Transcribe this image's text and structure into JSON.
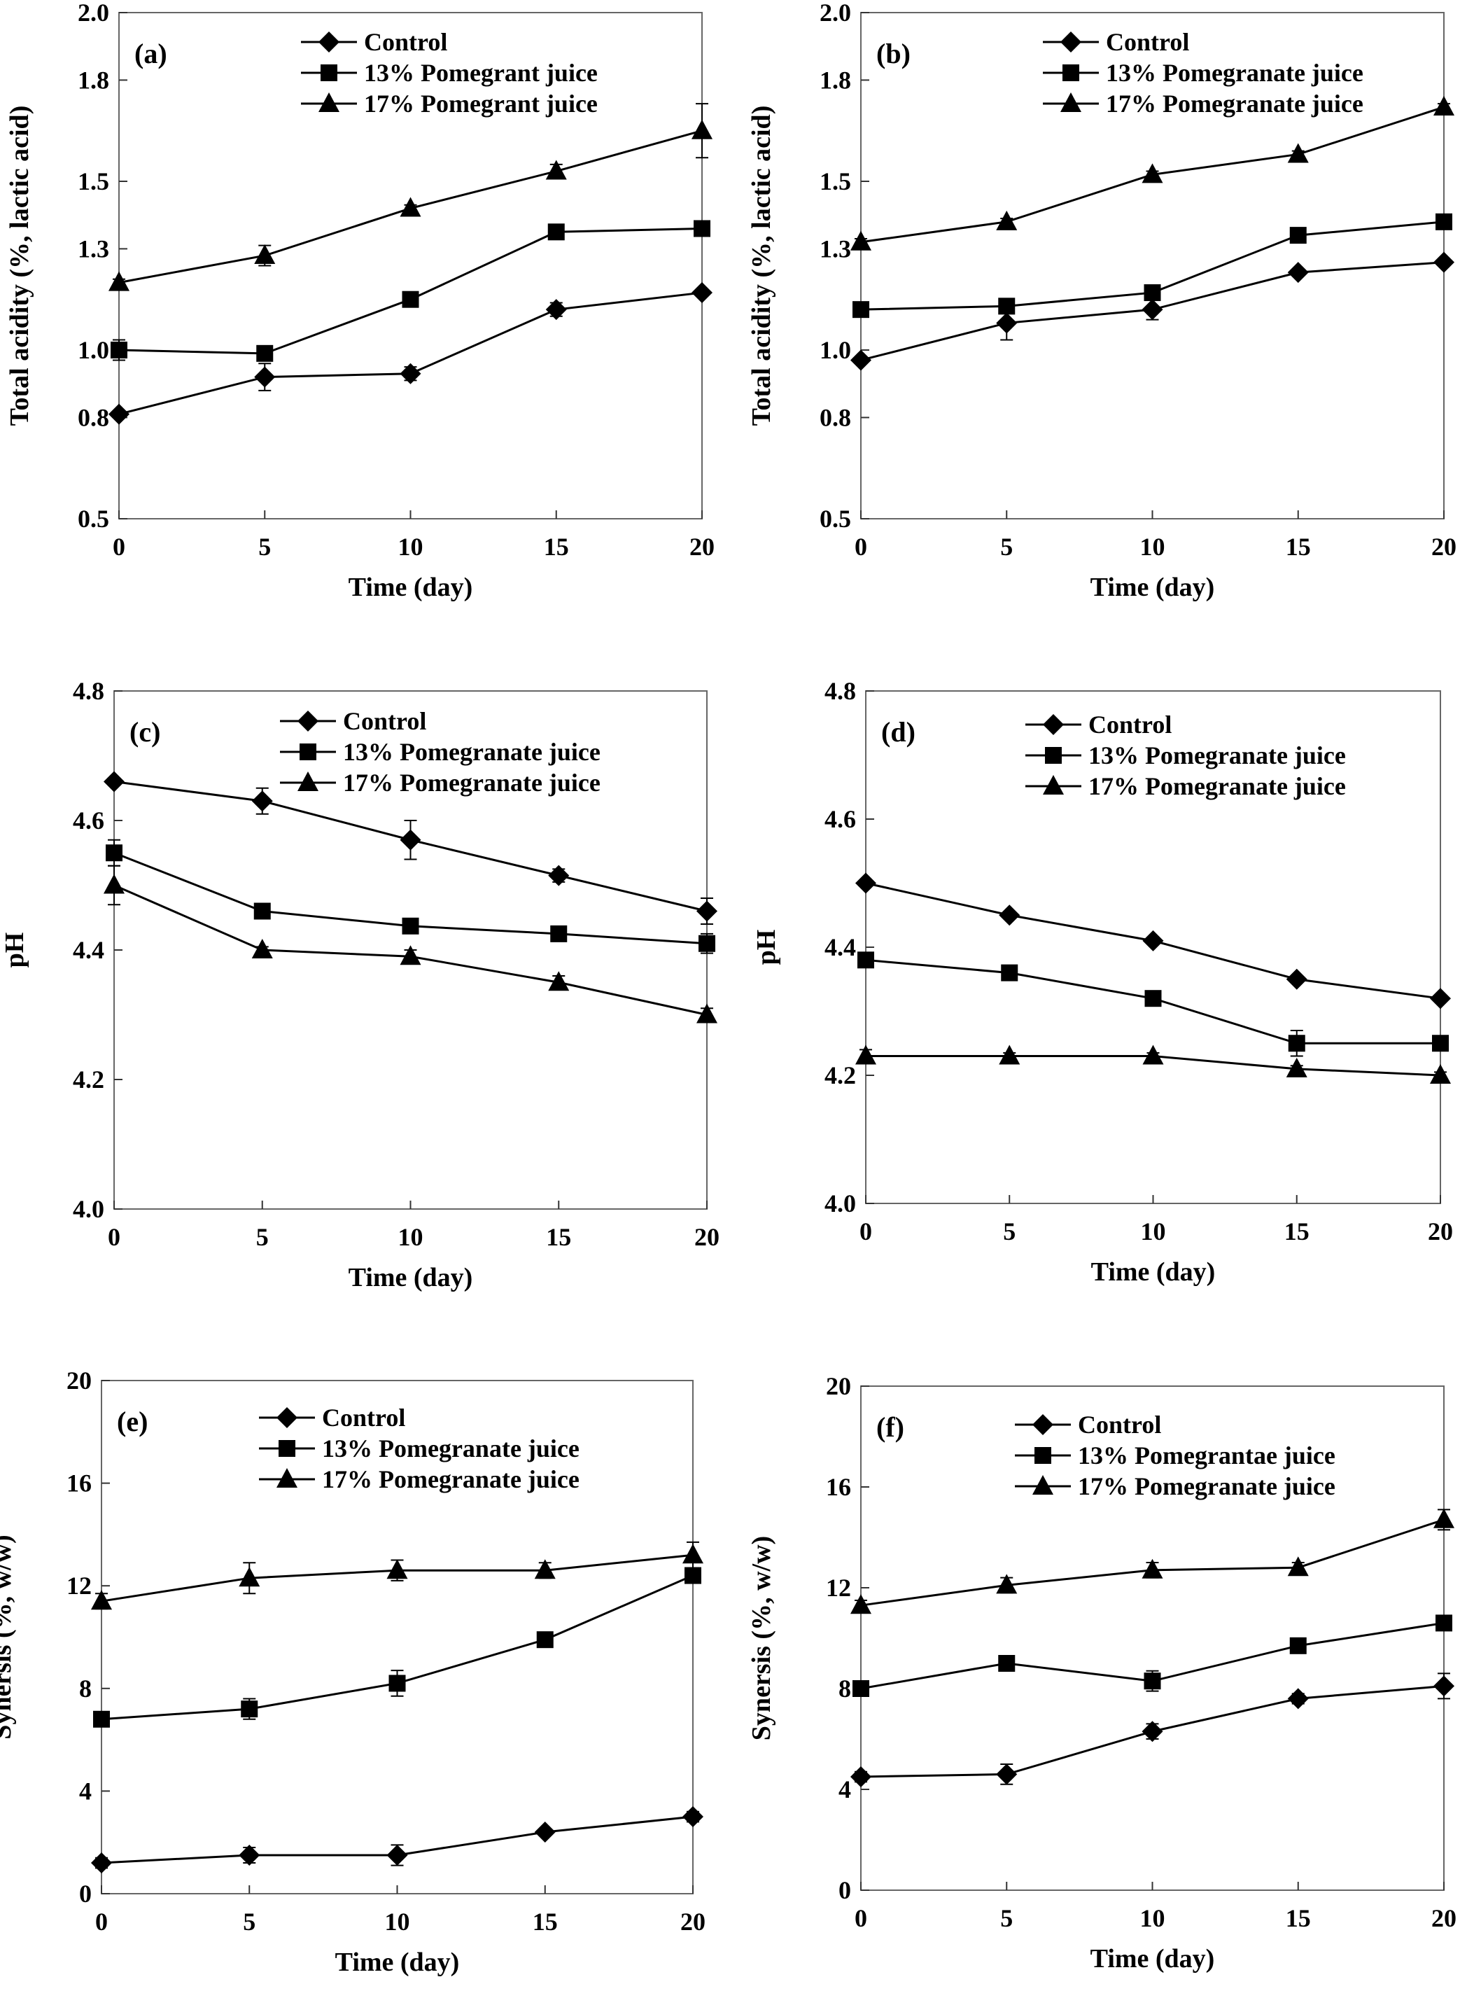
{
  "chart_data": [
    {
      "type": "line",
      "panel_label": "(a)",
      "xlabel": "Time (day)",
      "ylabel": "Total acidity (%, lactic acid)",
      "x": [
        0,
        5,
        10,
        15,
        20
      ],
      "xticks": [
        "0",
        "5",
        "10",
        "15",
        "20"
      ],
      "xlim": [
        0,
        20
      ],
      "ylim": [
        0.5,
        2.0
      ],
      "yticks": [
        "0.5",
        "0.8",
        "1.0",
        "1.3",
        "1.5",
        "1.8",
        "2.0"
      ],
      "grid": false,
      "legend_position": "top-right",
      "series": [
        {
          "name": "Control",
          "marker": "diamond",
          "values": [
            0.81,
            0.92,
            0.93,
            1.12,
            1.17
          ],
          "errors": [
            0.01,
            0.04,
            0.02,
            0.02,
            0.01
          ]
        },
        {
          "name": "13% Pomegrant juice",
          "marker": "square",
          "values": [
            1.0,
            0.99,
            1.15,
            1.35,
            1.36
          ],
          "errors": [
            0.03,
            0.01,
            0.01,
            0.01,
            0.02
          ]
        },
        {
          "name": "17% Pomegrant juice",
          "marker": "triangle",
          "values": [
            1.2,
            1.28,
            1.42,
            1.53,
            1.65
          ],
          "errors": [
            0.01,
            0.03,
            0.01,
            0.02,
            0.08
          ]
        }
      ]
    },
    {
      "type": "line",
      "panel_label": "(b)",
      "xlabel": "Time (day)",
      "ylabel": "Total acidity (%, lactic acid)",
      "x": [
        0,
        5,
        10,
        15,
        20
      ],
      "xticks": [
        "0",
        "5",
        "10",
        "15",
        "20"
      ],
      "xlim": [
        0,
        20
      ],
      "ylim": [
        0.5,
        2.0
      ],
      "yticks": [
        "0.5",
        "0.8",
        "1.0",
        "1.3",
        "1.5",
        "1.8",
        "2.0"
      ],
      "grid": false,
      "legend_position": "top-right",
      "series": [
        {
          "name": "Control",
          "marker": "diamond",
          "values": [
            0.97,
            1.08,
            1.12,
            1.23,
            1.26
          ],
          "errors": [
            0.01,
            0.05,
            0.03,
            0.01,
            0.01
          ]
        },
        {
          "name": "13% Pomegranate juice",
          "marker": "square",
          "values": [
            1.12,
            1.13,
            1.17,
            1.34,
            1.38
          ],
          "errors": [
            0.01,
            0.01,
            0.01,
            0.01,
            0.01
          ]
        },
        {
          "name": "17% Pomegranate juice",
          "marker": "triangle",
          "values": [
            1.32,
            1.38,
            1.52,
            1.58,
            1.72
          ],
          "errors": [
            0.01,
            0.01,
            0.01,
            0.01,
            0.01
          ]
        }
      ]
    },
    {
      "type": "line",
      "panel_label": "(c)",
      "xlabel": "Time (day)",
      "ylabel": "pH",
      "x": [
        0,
        5,
        10,
        15,
        20
      ],
      "xticks": [
        "0",
        "5",
        "10",
        "15",
        "20"
      ],
      "xlim": [
        0,
        20
      ],
      "ylim": [
        4.0,
        4.8
      ],
      "yticks": [
        "4.0",
        "4.2",
        "4.4",
        "4.6",
        "4.8"
      ],
      "grid": false,
      "legend_position": "top-right",
      "series": [
        {
          "name": "Control",
          "marker": "diamond",
          "values": [
            4.66,
            4.63,
            4.57,
            4.515,
            4.46
          ],
          "errors": [
            0.005,
            0.02,
            0.03,
            0.01,
            0.02
          ]
        },
        {
          "name": "13% Pomegranate juice",
          "marker": "square",
          "values": [
            4.55,
            4.46,
            4.437,
            4.425,
            4.41
          ],
          "errors": [
            0.02,
            0.005,
            0.005,
            0.01,
            0.015
          ]
        },
        {
          "name": "17% Pomegranate juice",
          "marker": "triangle",
          "values": [
            4.5,
            4.4,
            4.39,
            4.35,
            4.3
          ],
          "errors": [
            0.03,
            0.005,
            0.01,
            0.01,
            0.01
          ]
        }
      ]
    },
    {
      "type": "line",
      "panel_label": "(d)",
      "xlabel": "Time (day)",
      "ylabel": "pH",
      "x": [
        0,
        5,
        10,
        15,
        20
      ],
      "xticks": [
        "0",
        "5",
        "10",
        "15",
        "20"
      ],
      "xlim": [
        0,
        20
      ],
      "ylim": [
        4.0,
        4.8
      ],
      "yticks": [
        "4.0",
        "4.2",
        "4.4",
        "4.6",
        "4.8"
      ],
      "grid": false,
      "legend_position": "top-right",
      "series": [
        {
          "name": "Control",
          "marker": "diamond",
          "values": [
            4.5,
            4.45,
            4.41,
            4.35,
            4.32
          ],
          "errors": [
            0.005,
            0.005,
            0.005,
            0.005,
            0.005
          ]
        },
        {
          "name": "13% Pomegranate juice",
          "marker": "square",
          "values": [
            4.38,
            4.36,
            4.32,
            4.25,
            4.25
          ],
          "errors": [
            0.005,
            0.005,
            0.005,
            0.02,
            0.005
          ]
        },
        {
          "name": "17% Pomegranate juice",
          "marker": "triangle",
          "values": [
            4.23,
            4.23,
            4.23,
            4.21,
            4.2
          ],
          "errors": [
            0.01,
            0.005,
            0.005,
            0.005,
            0.005
          ]
        }
      ]
    },
    {
      "type": "line",
      "panel_label": "(e)",
      "xlabel": "Time (day)",
      "ylabel": "Synersis (%, w/w)",
      "x": [
        0,
        5,
        10,
        15,
        20
      ],
      "xticks": [
        "0",
        "5",
        "10",
        "15",
        "20"
      ],
      "xlim": [
        0,
        20
      ],
      "ylim": [
        0,
        20
      ],
      "yticks": [
        "0",
        "4",
        "8",
        "12",
        "16",
        "20"
      ],
      "grid": false,
      "legend_position": "top-right",
      "series": [
        {
          "name": "Control",
          "marker": "diamond",
          "values": [
            1.2,
            1.5,
            1.5,
            2.4,
            3.0
          ],
          "errors": [
            0.2,
            0.3,
            0.4,
            0.1,
            0.2
          ]
        },
        {
          "name": "13% Pomegranate juice",
          "marker": "square",
          "values": [
            6.8,
            7.2,
            8.2,
            9.9,
            12.4
          ],
          "errors": [
            0.2,
            0.4,
            0.5,
            0.2,
            0.3
          ]
        },
        {
          "name": "17% Pomegranate juice",
          "marker": "triangle",
          "values": [
            11.4,
            12.3,
            12.6,
            12.6,
            13.2
          ],
          "errors": [
            0.3,
            0.6,
            0.4,
            0.3,
            0.5
          ]
        }
      ]
    },
    {
      "type": "line",
      "panel_label": "(f)",
      "xlabel": "Time (day)",
      "ylabel": "Synersis (%, w/w)",
      "x": [
        0,
        5,
        10,
        15,
        20
      ],
      "xticks": [
        "0",
        "5",
        "10",
        "15",
        "20"
      ],
      "xlim": [
        0,
        20
      ],
      "ylim": [
        0,
        20
      ],
      "yticks": [
        "0",
        "4",
        "8",
        "12",
        "16",
        "20"
      ],
      "grid": false,
      "legend_position": "top-right",
      "series": [
        {
          "name": "Control",
          "marker": "diamond",
          "values": [
            4.5,
            4.6,
            6.3,
            7.6,
            8.1
          ],
          "errors": [
            0.2,
            0.4,
            0.3,
            0.2,
            0.5
          ]
        },
        {
          "name": "13% Pomegrantae juice",
          "marker": "square",
          "values": [
            8.0,
            9.0,
            8.3,
            9.7,
            10.6
          ],
          "errors": [
            0.2,
            0.1,
            0.4,
            0.2,
            0.2
          ]
        },
        {
          "name": "17% Pomegranate juice",
          "marker": "triangle",
          "values": [
            11.3,
            12.1,
            12.7,
            12.8,
            14.7
          ],
          "errors": [
            0.2,
            0.3,
            0.3,
            0.2,
            0.4
          ]
        }
      ]
    }
  ]
}
